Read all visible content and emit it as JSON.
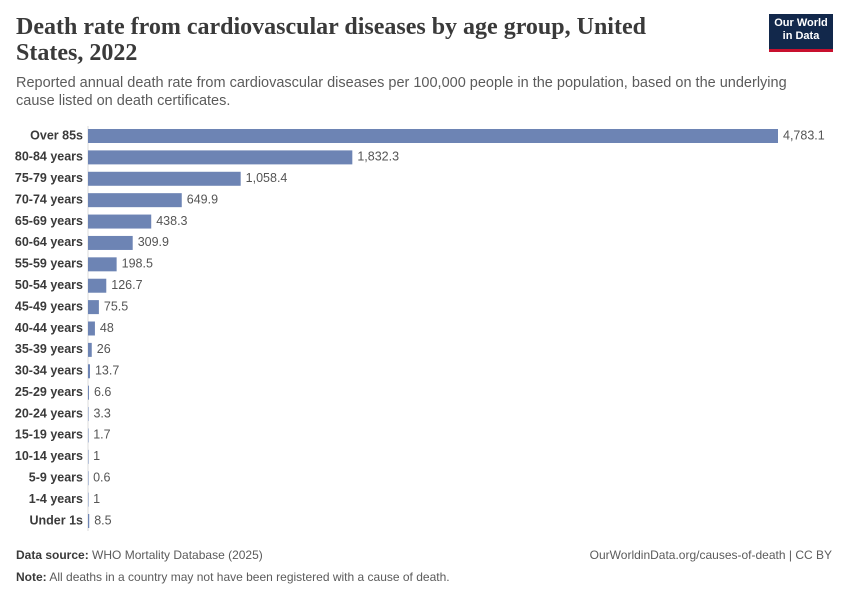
{
  "chart_data": {
    "type": "bar",
    "orientation": "horizontal",
    "title": "Death rate from cardiovascular diseases by age group, United States, 2022",
    "subtitle": "Reported annual death rate from cardiovascular diseases per 100,000 people in the population, based on the underlying cause listed on death certificates.",
    "categories": [
      "Over 85s",
      "80-84 years",
      "75-79 years",
      "70-74 years",
      "65-69 years",
      "60-64 years",
      "55-59 years",
      "50-54 years",
      "45-49 years",
      "40-44 years",
      "35-39 years",
      "30-34 years",
      "25-29 years",
      "20-24 years",
      "15-19 years",
      "10-14 years",
      "5-9 years",
      "1-4 years",
      "Under 1s"
    ],
    "values": [
      4783.1,
      1832.3,
      1058.4,
      649.9,
      438.3,
      309.9,
      198.5,
      126.7,
      75.5,
      48,
      26,
      13.7,
      6.6,
      3.3,
      1.7,
      1,
      0.6,
      1,
      8.5
    ],
    "value_labels": [
      "4,783.1",
      "1,832.3",
      "1,058.4",
      "649.9",
      "438.3",
      "309.9",
      "198.5",
      "126.7",
      "75.5",
      "48",
      "26",
      "13.7",
      "6.6",
      "3.3",
      "1.7",
      "1",
      "0.6",
      "1",
      "8.5"
    ],
    "color": "#6d84b4",
    "source_label": "Data source:",
    "source": "WHO Mortality Database (2025)",
    "url": "OurWorldinData.org/causes-of-death | CC BY",
    "note_label": "Note:",
    "note": "All deaths in a country may not have been registered with a cause of death.",
    "logo": "Our World in Data"
  }
}
